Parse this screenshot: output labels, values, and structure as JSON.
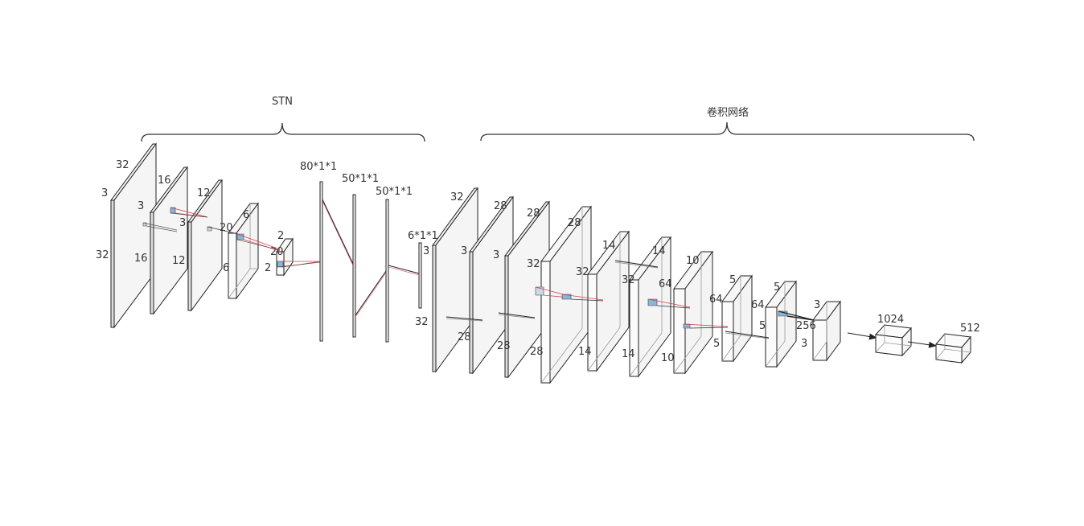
{
  "groups": {
    "stn": {
      "label": "STN"
    },
    "cnn": {
      "label": "卷积网络"
    }
  },
  "fc_labels": [
    "80*1*1",
    "50*1*1",
    "50*1*1",
    "6*1*1"
  ],
  "stn_layers": [
    {
      "depth": "3",
      "width": "32",
      "height": "32",
      "kernel": "3"
    },
    {
      "depth": "16",
      "width": "16",
      "height": "16",
      "kernel": "3"
    },
    {
      "depth": "12",
      "width": "12",
      "height": "12",
      "kernel": "3"
    },
    {
      "depth": "20",
      "width": "6",
      "height": "6"
    },
    {
      "depth": "20",
      "width": "2",
      "height": "2"
    }
  ],
  "cnn_layers": [
    {
      "depth": "3",
      "width": "32",
      "height": "32",
      "kernel": "3"
    },
    {
      "depth": "28",
      "width": "28",
      "height": "28",
      "kernel": "3"
    },
    {
      "depth": "32",
      "width": "28",
      "height": "28"
    },
    {
      "depth": "32",
      "width": "28",
      "height": "28"
    },
    {
      "depth": "32",
      "width": "14",
      "height": "14"
    },
    {
      "depth": "64",
      "width": "14",
      "height": "14"
    },
    {
      "depth": "64",
      "width": "10",
      "height": "10"
    },
    {
      "depth": "64",
      "width": "5",
      "height": "5"
    },
    {
      "depth": "256",
      "width": "5",
      "height": "5"
    },
    {
      "depth": "3",
      "width": "3",
      "height": "3"
    }
  ],
  "dense_layers": [
    {
      "label": "1024"
    },
    {
      "label": "512"
    }
  ],
  "colors": {
    "line": "#222222",
    "face": "#f4f4f4",
    "kernel_red": "#d04050",
    "kernel_blue": "#8ab4d8"
  }
}
